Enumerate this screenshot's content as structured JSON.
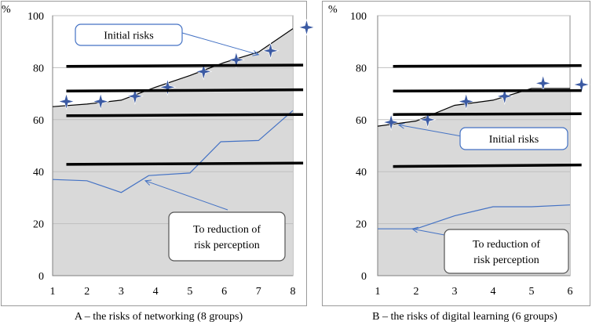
{
  "chart_data": [
    {
      "id": "A",
      "type": "line",
      "title": "",
      "caption": "A – the risks of networking (8 groups)",
      "ylabel": "%",
      "xlabel": "",
      "xlim": [
        1,
        8
      ],
      "ylim": [
        0,
        100
      ],
      "xticks": [
        1,
        2,
        3,
        4,
        5,
        6,
        7,
        8
      ],
      "yticks": [
        0,
        20,
        40,
        60,
        80,
        100
      ],
      "grid": true,
      "series": [
        {
          "name": "Initial risks",
          "style": "thin-black-area",
          "x": [
            1,
            2,
            3,
            4,
            5,
            6,
            7,
            8
          ],
          "values": [
            65,
            66,
            67.5,
            72.5,
            77,
            82,
            86,
            95
          ]
        },
        {
          "name": "To reduction of risk perception",
          "style": "blue",
          "x": [
            1,
            2,
            3,
            3.8,
            5,
            5.9,
            7,
            8
          ],
          "values": [
            37,
            36.5,
            32,
            38.5,
            39.5,
            51.5,
            52,
            63.5
          ]
        },
        {
          "name": "stars",
          "style": "star",
          "x": [
            1.4,
            2.4,
            3.4,
            4.35,
            5.4,
            6.35,
            7.35,
            8.4
          ],
          "values": [
            67,
            67,
            69,
            72.5,
            78.5,
            83,
            86.5,
            95.5
          ]
        },
        {
          "name": "level-1",
          "style": "thick-black",
          "x": [
            1.4,
            8.3
          ],
          "values": [
            80.5,
            81
          ]
        },
        {
          "name": "level-2",
          "style": "thick-black",
          "x": [
            1.4,
            8.3
          ],
          "values": [
            71,
            71.5
          ]
        },
        {
          "name": "level-3",
          "style": "thick-black",
          "x": [
            1.4,
            8.3
          ],
          "values": [
            61.5,
            62
          ]
        },
        {
          "name": "level-4",
          "style": "thick-black",
          "x": [
            1.4,
            8.3
          ],
          "values": [
            42.8,
            43.3
          ]
        }
      ],
      "annotations": [
        {
          "text": "Initial risks",
          "points_to": [
            7,
            85
          ]
        },
        {
          "text": "To reduction of risk perception",
          "points_to": [
            3.7,
            36.5
          ]
        }
      ]
    },
    {
      "id": "B",
      "type": "line",
      "title": "",
      "caption": "B – the risks of digital learning (6 groups)",
      "ylabel": "%",
      "xlabel": "",
      "xlim": [
        1,
        6
      ],
      "ylim": [
        0,
        100
      ],
      "xticks": [
        1,
        2,
        3,
        4,
        5,
        6
      ],
      "yticks": [
        0,
        20,
        40,
        60,
        80,
        100
      ],
      "grid": true,
      "series": [
        {
          "name": "Initial risks",
          "style": "thin-black-area",
          "x": [
            1,
            2,
            3,
            4,
            5,
            6
          ],
          "values": [
            57.5,
            59.5,
            65.5,
            67.5,
            72,
            72
          ]
        },
        {
          "name": "To reduction of risk perception",
          "style": "blue",
          "x": [
            1,
            2,
            3,
            4,
            5,
            6
          ],
          "values": [
            18,
            18,
            23,
            26.5,
            26.5,
            27.2
          ]
        },
        {
          "name": "stars",
          "style": "star",
          "x": [
            1.35,
            2.3,
            3.3,
            4.3,
            5.3,
            6.3
          ],
          "values": [
            59,
            60,
            67,
            69,
            74,
            73.5
          ]
        },
        {
          "name": "level-1",
          "style": "thick-black",
          "x": [
            1.4,
            6.3
          ],
          "values": [
            80.5,
            80.8
          ]
        },
        {
          "name": "level-2",
          "style": "thick-black",
          "x": [
            1.4,
            6.3
          ],
          "values": [
            71,
            71.2
          ]
        },
        {
          "name": "level-3",
          "style": "thick-black",
          "x": [
            1.4,
            6.3
          ],
          "values": [
            62,
            62.3
          ]
        },
        {
          "name": "level-4",
          "style": "thick-black",
          "x": [
            1.4,
            6.3
          ],
          "values": [
            42,
            42.6
          ]
        }
      ],
      "annotations": [
        {
          "text": "Initial risks",
          "points_to": [
            1.55,
            58
          ]
        },
        {
          "text": "To reduction of risk perception",
          "points_to": [
            1.9,
            18
          ]
        }
      ]
    }
  ],
  "colors": {
    "fill": "#d9d9d9",
    "grid": "#bfbfbf",
    "blue": "#4472c4",
    "star": "#3b5aa3",
    "black": "#000000"
  }
}
